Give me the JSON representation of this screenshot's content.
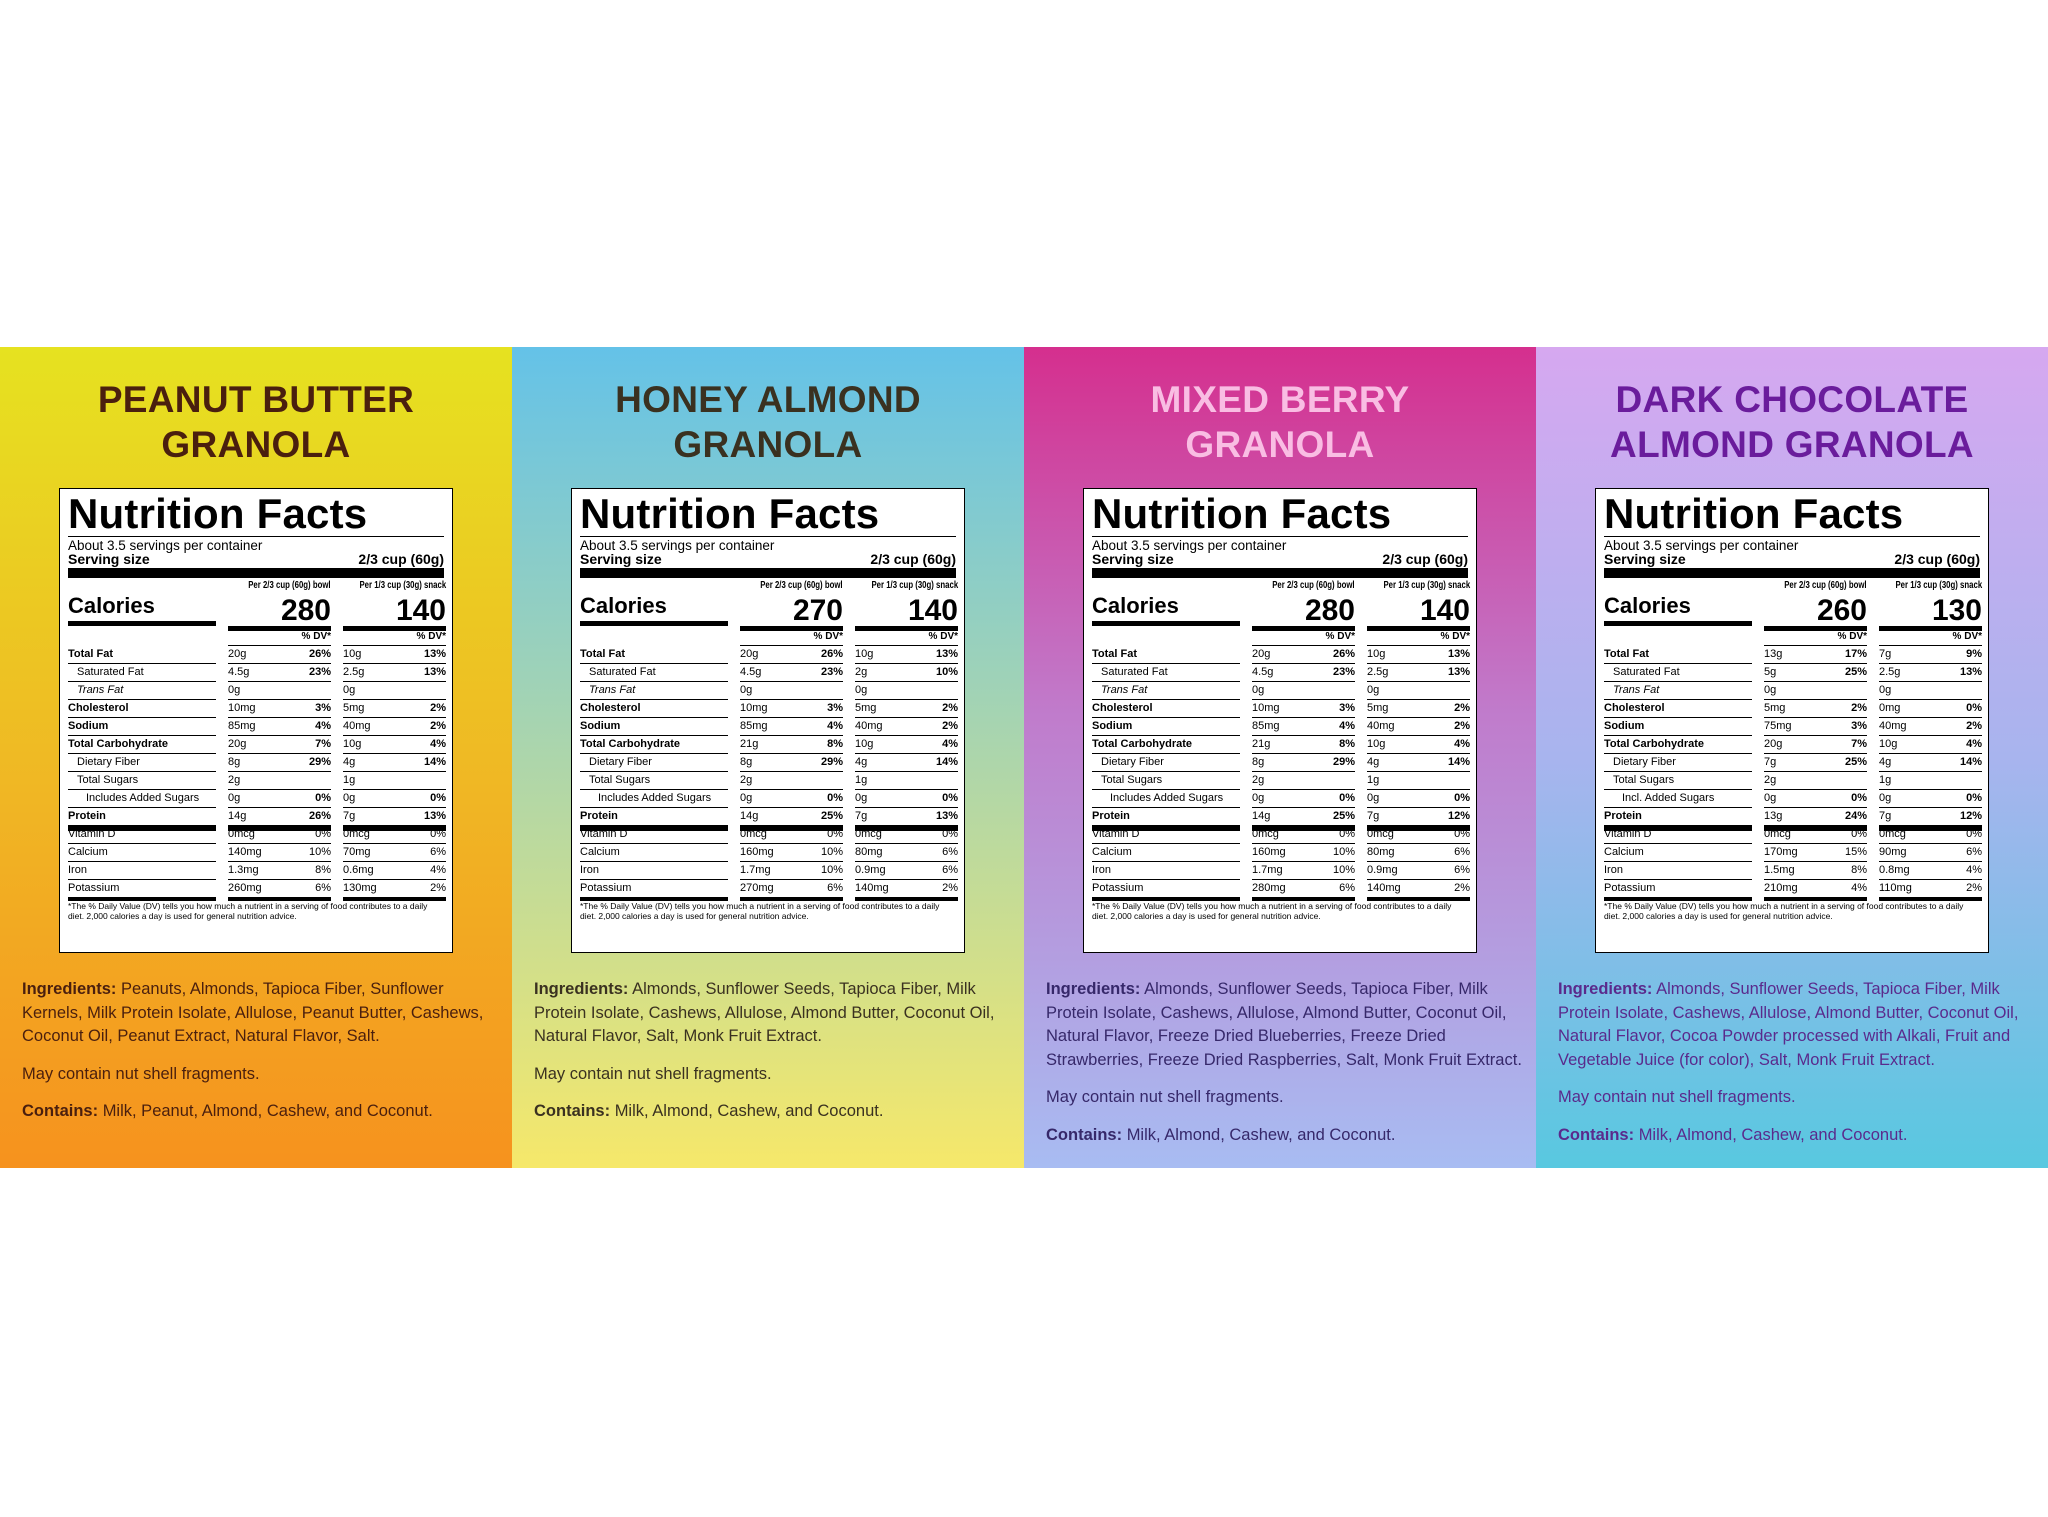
{
  "panels": [
    {
      "title": [
        "PEANUT BUTTER",
        "GRANOLA"
      ],
      "facts": {
        "heading": "Nutrition Facts",
        "servings": "About 3.5 servings per container",
        "serving_size_label": "Serving size",
        "serving_size": "2/3 cup (60g)",
        "columns": [
          "Per 2/3 cup (60g) bowl",
          "Per 1/3 cup (30g) snack"
        ],
        "calories_label": "Calories",
        "calories": [
          280,
          140
        ],
        "dv_header": "% DV*",
        "rows": [
          [
            "Total Fat",
            "20g",
            "26%",
            "10g",
            "13%"
          ],
          [
            "Saturated Fat",
            "4.5g",
            "23%",
            "2.5g",
            "13%"
          ],
          [
            "Trans Fat",
            "0g",
            null,
            "0g",
            null
          ],
          [
            "Cholesterol",
            "10mg",
            "3%",
            "5mg",
            "2%"
          ],
          [
            "Sodium",
            "85mg",
            "4%",
            "40mg",
            "2%"
          ],
          [
            "Total Carbohydrate",
            "20g",
            "7%",
            "10g",
            "4%"
          ],
          [
            "Dietary Fiber",
            "8g",
            "29%",
            "4g",
            "14%"
          ],
          [
            "Total Sugars",
            "2g",
            null,
            "1g",
            null
          ],
          [
            "Includes Added Sugars",
            "0g",
            "0%",
            "0g",
            "0%"
          ],
          [
            "Protein",
            "14g",
            "26%",
            "7g",
            "13%"
          ],
          [
            "Vitamin D",
            "0mcg",
            "0%",
            "0mcg",
            "0%"
          ],
          [
            "Calcium",
            "140mg",
            "10%",
            "70mg",
            "6%"
          ],
          [
            "Iron",
            "1.3mg",
            "8%",
            "0.6mg",
            "4%"
          ],
          [
            "Potassium",
            "260mg",
            "6%",
            "130mg",
            "2%"
          ]
        ],
        "footnote": "*The % Daily Value (DV) tells you how much a nutrient in a serving of food contributes to a daily diet. 2,000 calories a day is used for general nutrition advice."
      },
      "ingredients_label": "Ingredients:",
      "ingredients": "Peanuts, Almonds, Tapioca Fiber, Sunflower Kernels, Milk Protein Isolate, Allulose, Peanut Butter, Cashews, Coconut Oil, Peanut Extract, Natural Flavor, Salt.",
      "note": "May contain nut shell fragments.",
      "contains_label": "Contains:",
      "contains": "Milk, Peanut, Almond, Cashew, and Coconut."
    },
    {
      "title": [
        "HONEY ALMOND",
        "GRANOLA"
      ],
      "facts": {
        "heading": "Nutrition Facts",
        "servings": "About 3.5 servings per container",
        "serving_size_label": "Serving size",
        "serving_size": "2/3 cup (60g)",
        "columns": [
          "Per 2/3 cup (60g) bowl",
          "Per 1/3 cup (30g) snack"
        ],
        "calories_label": "Calories",
        "calories": [
          270,
          140
        ],
        "dv_header": "% DV*",
        "rows": [
          [
            "Total Fat",
            "20g",
            "26%",
            "10g",
            "13%"
          ],
          [
            "Saturated Fat",
            "4.5g",
            "23%",
            "2g",
            "10%"
          ],
          [
            "Trans Fat",
            "0g",
            null,
            "0g",
            null
          ],
          [
            "Cholesterol",
            "10mg",
            "3%",
            "5mg",
            "2%"
          ],
          [
            "Sodium",
            "85mg",
            "4%",
            "40mg",
            "2%"
          ],
          [
            "Total Carbohydrate",
            "21g",
            "8%",
            "10g",
            "4%"
          ],
          [
            "Dietary Fiber",
            "8g",
            "29%",
            "4g",
            "14%"
          ],
          [
            "Total Sugars",
            "2g",
            null,
            "1g",
            null
          ],
          [
            "Includes Added Sugars",
            "0g",
            "0%",
            "0g",
            "0%"
          ],
          [
            "Protein",
            "14g",
            "25%",
            "7g",
            "13%"
          ],
          [
            "Vitamin D",
            "0mcg",
            "0%",
            "0mcg",
            "0%"
          ],
          [
            "Calcium",
            "160mg",
            "10%",
            "80mg",
            "6%"
          ],
          [
            "Iron",
            "1.7mg",
            "10%",
            "0.9mg",
            "6%"
          ],
          [
            "Potassium",
            "270mg",
            "6%",
            "140mg",
            "2%"
          ]
        ],
        "footnote": "*The % Daily Value (DV) tells you how much a nutrient in a serving of food contributes to a daily diet. 2,000 calories a day is used for general nutrition advice."
      },
      "ingredients_label": "Ingredients:",
      "ingredients": "Almonds, Sunflower Seeds, Tapioca Fiber, Milk Protein Isolate, Cashews, Allulose, Almond Butter, Coconut Oil, Natural Flavor, Salt, Monk Fruit Extract.",
      "note": "May contain nut shell fragments.",
      "contains_label": "Contains:",
      "contains": "Milk, Almond, Cashew, and Coconut."
    },
    {
      "title": [
        "MIXED BERRY",
        "GRANOLA"
      ],
      "facts": {
        "heading": "Nutrition Facts",
        "servings": "About 3.5 servings per container",
        "serving_size_label": "Serving size",
        "serving_size": "2/3 cup (60g)",
        "columns": [
          "Per 2/3 cup (60g) bowl",
          "Per 1/3 cup (30g) snack"
        ],
        "calories_label": "Calories",
        "calories": [
          280,
          140
        ],
        "dv_header": "% DV*",
        "rows": [
          [
            "Total Fat",
            "20g",
            "26%",
            "10g",
            "13%"
          ],
          [
            "Saturated Fat",
            "4.5g",
            "23%",
            "2.5g",
            "13%"
          ],
          [
            "Trans Fat",
            "0g",
            null,
            "0g",
            null
          ],
          [
            "Cholesterol",
            "10mg",
            "3%",
            "5mg",
            "2%"
          ],
          [
            "Sodium",
            "85mg",
            "4%",
            "40mg",
            "2%"
          ],
          [
            "Total Carbohydrate",
            "21g",
            "8%",
            "10g",
            "4%"
          ],
          [
            "Dietary Fiber",
            "8g",
            "29%",
            "4g",
            "14%"
          ],
          [
            "Total Sugars",
            "2g",
            null,
            "1g",
            null
          ],
          [
            "Includes Added Sugars",
            "0g",
            "0%",
            "0g",
            "0%"
          ],
          [
            "Protein",
            "14g",
            "25%",
            "7g",
            "12%"
          ],
          [
            "Vitamin D",
            "0mcg",
            "0%",
            "0mcg",
            "0%"
          ],
          [
            "Calcium",
            "160mg",
            "10%",
            "80mg",
            "6%"
          ],
          [
            "Iron",
            "1.7mg",
            "10%",
            "0.9mg",
            "6%"
          ],
          [
            "Potassium",
            "280mg",
            "6%",
            "140mg",
            "2%"
          ]
        ],
        "footnote": "*The % Daily Value (DV) tells you how much a nutrient in a serving of food contributes to a daily diet. 2,000 calories a day is used for general nutrition advice."
      },
      "ingredients_label": "Ingredients:",
      "ingredients": "Almonds, Sunflower Seeds, Tapioca Fiber, Milk Protein Isolate, Cashews, Allulose, Almond Butter, Coconut Oil, Natural Flavor, Freeze Dried Blueberries, Freeze Dried Strawberries, Freeze Dried Raspberries, Salt, Monk Fruit Extract.",
      "note": "May contain nut shell fragments.",
      "contains_label": "Contains:",
      "contains": "Milk, Almond, Cashew, and Coconut."
    },
    {
      "title": [
        "DARK CHOCOLATE",
        "ALMOND GRANOLA"
      ],
      "facts": {
        "heading": "Nutrition Facts",
        "servings": "About 3.5 servings per container",
        "serving_size_label": "Serving size",
        "serving_size": "2/3 cup (60g)",
        "columns": [
          "Per 2/3 cup (60g) bowl",
          "Per 1/3 cup (30g) snack"
        ],
        "calories_label": "Calories",
        "calories": [
          260,
          130
        ],
        "dv_header": "% DV*",
        "rows": [
          [
            "Total Fat",
            "13g",
            "17%",
            "7g",
            "9%"
          ],
          [
            "Saturated Fat",
            "5g",
            "25%",
            "2.5g",
            "13%"
          ],
          [
            "Trans Fat",
            "0g",
            null,
            "0g",
            null
          ],
          [
            "Cholesterol",
            "5mg",
            "2%",
            "0mg",
            "0%"
          ],
          [
            "Sodium",
            "75mg",
            "3%",
            "40mg",
            "2%"
          ],
          [
            "Total Carbohydrate",
            "20g",
            "7%",
            "10g",
            "4%"
          ],
          [
            "Dietary Fiber",
            "7g",
            "25%",
            "4g",
            "14%"
          ],
          [
            "Total Sugars",
            "2g",
            null,
            "1g",
            null
          ],
          [
            "Incl. Added Sugars",
            "0g",
            "0%",
            "0g",
            "0%"
          ],
          [
            "Protein",
            "13g",
            "24%",
            "7g",
            "12%"
          ],
          [
            "Vitamin D",
            "0mcg",
            "0%",
            "0mcg",
            "0%"
          ],
          [
            "Calcium",
            "170mg",
            "15%",
            "90mg",
            "6%"
          ],
          [
            "Iron",
            "1.5mg",
            "8%",
            "0.8mg",
            "4%"
          ],
          [
            "Potassium",
            "210mg",
            "4%",
            "110mg",
            "2%"
          ]
        ],
        "footnote": "*The % Daily Value (DV) tells you how much a nutrient in a serving of food contributes to a daily diet. 2,000 calories a day is used for general nutrition advice."
      },
      "ingredients_label": "Ingredients:",
      "ingredients": "Almonds, Sunflower Seeds, Tapioca Fiber, Milk Protein Isolate, Cashews, Allulose, Almond Butter, Coconut Oil, Natural Flavor, Cocoa Powder processed with Alkali, Fruit and Vegetable Juice (for color), Salt, Monk Fruit Extract.",
      "note": "May contain nut shell fragments.",
      "contains_label": "Contains:",
      "contains": "Milk, Almond, Cashew, and Coconut."
    }
  ]
}
